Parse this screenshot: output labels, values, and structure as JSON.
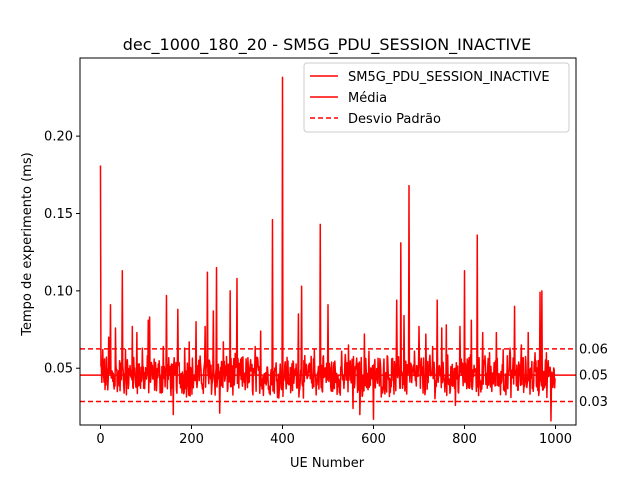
{
  "chart_data": {
    "type": "line",
    "title": "dec_1000_180_20 - SM5G_PDU_SESSION_INACTIVE",
    "xlabel": "UE Number",
    "ylabel": "Tempo de experimento (ms)",
    "xlim": [
      -45,
      1045
    ],
    "ylim": [
      0.0133,
      0.2505
    ],
    "xticks": [
      0,
      200,
      400,
      600,
      800,
      1000
    ],
    "yticks": [
      0.05,
      0.1,
      0.15,
      0.2
    ],
    "ytick_labels": [
      "0.05",
      "0.10",
      "0.15",
      "0.20"
    ],
    "grid": false,
    "legend_position": "top-right",
    "series": [
      {
        "name": "SM5G_PDU_SESSION_INACTIVE",
        "style": "solid",
        "color": "#ff0000",
        "x_start": 0,
        "x_step": 1,
        "baseline": 0.045,
        "spikes": [
          [
            0,
            0.181
          ],
          [
            5,
            0.062
          ],
          [
            18,
            0.07
          ],
          [
            22,
            0.091
          ],
          [
            33,
            0.076
          ],
          [
            48,
            0.113
          ],
          [
            55,
            0.062
          ],
          [
            70,
            0.077
          ],
          [
            80,
            0.073
          ],
          [
            92,
            0.063
          ],
          [
            105,
            0.081
          ],
          [
            108,
            0.083
          ],
          [
            120,
            0.045
          ],
          [
            138,
            0.064
          ],
          [
            145,
            0.097
          ],
          [
            160,
            0.02
          ],
          [
            170,
            0.088
          ],
          [
            185,
            0.063
          ],
          [
            195,
            0.067
          ],
          [
            210,
            0.08
          ],
          [
            230,
            0.077
          ],
          [
            235,
            0.112
          ],
          [
            248,
            0.087
          ],
          [
            255,
            0.115
          ],
          [
            262,
            0.021
          ],
          [
            270,
            0.067
          ],
          [
            285,
            0.1
          ],
          [
            295,
            0.045
          ],
          [
            300,
            0.108
          ],
          [
            320,
            0.056
          ],
          [
            340,
            0.064
          ],
          [
            352,
            0.074
          ],
          [
            378,
            0.146
          ],
          [
            390,
            0.031
          ],
          [
            400,
            0.238
          ],
          [
            410,
            0.057
          ],
          [
            420,
            0.049
          ],
          [
            435,
            0.085
          ],
          [
            442,
            0.103
          ],
          [
            450,
            0.046
          ],
          [
            470,
            0.062
          ],
          [
            483,
            0.143
          ],
          [
            490,
            0.058
          ],
          [
            500,
            0.091
          ],
          [
            510,
            0.035
          ],
          [
            530,
            0.061
          ],
          [
            545,
            0.065
          ],
          [
            555,
            0.024
          ],
          [
            570,
            0.02
          ],
          [
            580,
            0.072
          ],
          [
            590,
            0.061
          ],
          [
            600,
            0.017
          ],
          [
            615,
            0.054
          ],
          [
            630,
            0.058
          ],
          [
            640,
            0.056
          ],
          [
            651,
            0.094
          ],
          [
            660,
            0.131
          ],
          [
            667,
            0.084
          ],
          [
            678,
            0.168
          ],
          [
            690,
            0.061
          ],
          [
            700,
            0.077
          ],
          [
            715,
            0.072
          ],
          [
            730,
            0.064
          ],
          [
            740,
            0.094
          ],
          [
            750,
            0.076
          ],
          [
            760,
            0.078
          ],
          [
            770,
            0.051
          ],
          [
            780,
            0.026
          ],
          [
            790,
            0.077
          ],
          [
            800,
            0.113
          ],
          [
            815,
            0.081
          ],
          [
            828,
            0.136
          ],
          [
            840,
            0.073
          ],
          [
            855,
            0.06
          ],
          [
            870,
            0.073
          ],
          [
            885,
            0.062
          ],
          [
            900,
            0.063
          ],
          [
            910,
            0.09
          ],
          [
            925,
            0.065
          ],
          [
            940,
            0.073
          ],
          [
            955,
            0.06
          ],
          [
            966,
            0.099
          ],
          [
            970,
            0.1
          ],
          [
            980,
            0.06
          ],
          [
            990,
            0.016
          ],
          [
            995,
            0.042
          ]
        ]
      },
      {
        "name": "Média",
        "style": "solid",
        "color": "#ff0000",
        "value": 0.0455
      },
      {
        "name": "Desvio Padrão",
        "style": "dashed",
        "color": "#ff0000",
        "values": [
          0.0625,
          0.0285
        ]
      }
    ],
    "right_annotations": [
      "0.06",
      "0.05",
      "0.03"
    ]
  }
}
